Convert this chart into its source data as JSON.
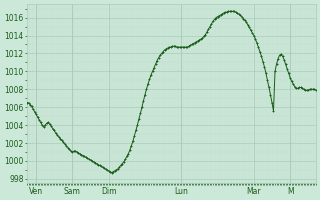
{
  "bg_color": "#cce8d8",
  "line_color": "#1a5c1a",
  "marker_color": "#1a5c1a",
  "grid_major_color": "#aaccbb",
  "grid_minor_color": "#c2ddd0",
  "tick_label_color": "#1a5c1a",
  "ylim": [
    997.5,
    1017.5
  ],
  "yticks": [
    998,
    1000,
    1002,
    1004,
    1006,
    1008,
    1010,
    1012,
    1014,
    1016
  ],
  "day_labels": [
    "Ven",
    "Sam",
    "Dim",
    "Lun",
    "Mar",
    "M"
  ],
  "day_positions": [
    6,
    30,
    54,
    102,
    150,
    174
  ],
  "total_points": 192,
  "pressure_data": [
    1006.5,
    1006.5,
    1006.3,
    1006.1,
    1005.8,
    1005.5,
    1005.2,
    1004.9,
    1004.6,
    1004.3,
    1004.0,
    1003.8,
    1004.0,
    1004.2,
    1004.3,
    1004.1,
    1003.9,
    1003.6,
    1003.4,
    1003.1,
    1002.9,
    1002.7,
    1002.5,
    1002.3,
    1002.1,
    1001.9,
    1001.7,
    1001.5,
    1001.3,
    1001.1,
    1001.0,
    1001.1,
    1001.1,
    1001.0,
    1000.9,
    1000.8,
    1000.7,
    1000.6,
    1000.5,
    1000.4,
    1000.3,
    1000.2,
    1000.1,
    1000.0,
    999.9,
    999.8,
    999.7,
    999.6,
    999.5,
    999.4,
    999.3,
    999.2,
    999.1,
    999.0,
    998.9,
    998.8,
    998.7,
    998.8,
    998.9,
    999.0,
    999.1,
    999.3,
    999.5,
    999.7,
    999.9,
    1000.2,
    1000.5,
    1000.8,
    1001.2,
    1001.7,
    1002.2,
    1002.8,
    1003.4,
    1004.0,
    1004.7,
    1005.3,
    1006.0,
    1006.7,
    1007.4,
    1008.0,
    1008.6,
    1009.1,
    1009.6,
    1010.0,
    1010.4,
    1010.8,
    1011.2,
    1011.5,
    1011.8,
    1012.0,
    1012.2,
    1012.4,
    1012.5,
    1012.6,
    1012.7,
    1012.7,
    1012.8,
    1012.8,
    1012.8,
    1012.7,
    1012.7,
    1012.7,
    1012.7,
    1012.7,
    1012.7,
    1012.7,
    1012.7,
    1012.8,
    1012.9,
    1013.0,
    1013.1,
    1013.2,
    1013.3,
    1013.4,
    1013.5,
    1013.6,
    1013.7,
    1013.9,
    1014.1,
    1014.4,
    1014.7,
    1015.0,
    1015.3,
    1015.6,
    1015.8,
    1016.0,
    1016.1,
    1016.2,
    1016.3,
    1016.4,
    1016.5,
    1016.6,
    1016.6,
    1016.7,
    1016.7,
    1016.7,
    1016.7,
    1016.7,
    1016.6,
    1016.5,
    1016.4,
    1016.3,
    1016.1,
    1015.9,
    1015.7,
    1015.5,
    1015.2,
    1014.9,
    1014.6,
    1014.3,
    1014.0,
    1013.6,
    1013.2,
    1012.7,
    1012.2,
    1011.7,
    1011.1,
    1010.5,
    1009.8,
    1009.0,
    1008.2,
    1007.4,
    1006.5,
    1005.6,
    1010.0,
    1010.8,
    1011.4,
    1011.8,
    1011.9,
    1011.7,
    1011.3,
    1010.8,
    1010.3,
    1009.8,
    1009.3,
    1008.9,
    1008.6,
    1008.3,
    1008.1,
    1008.1,
    1008.2,
    1008.2,
    1008.1,
    1008.0,
    1007.9,
    1007.9,
    1007.9,
    1008.0,
    1008.0,
    1008.0,
    1008.0,
    1007.9
  ]
}
